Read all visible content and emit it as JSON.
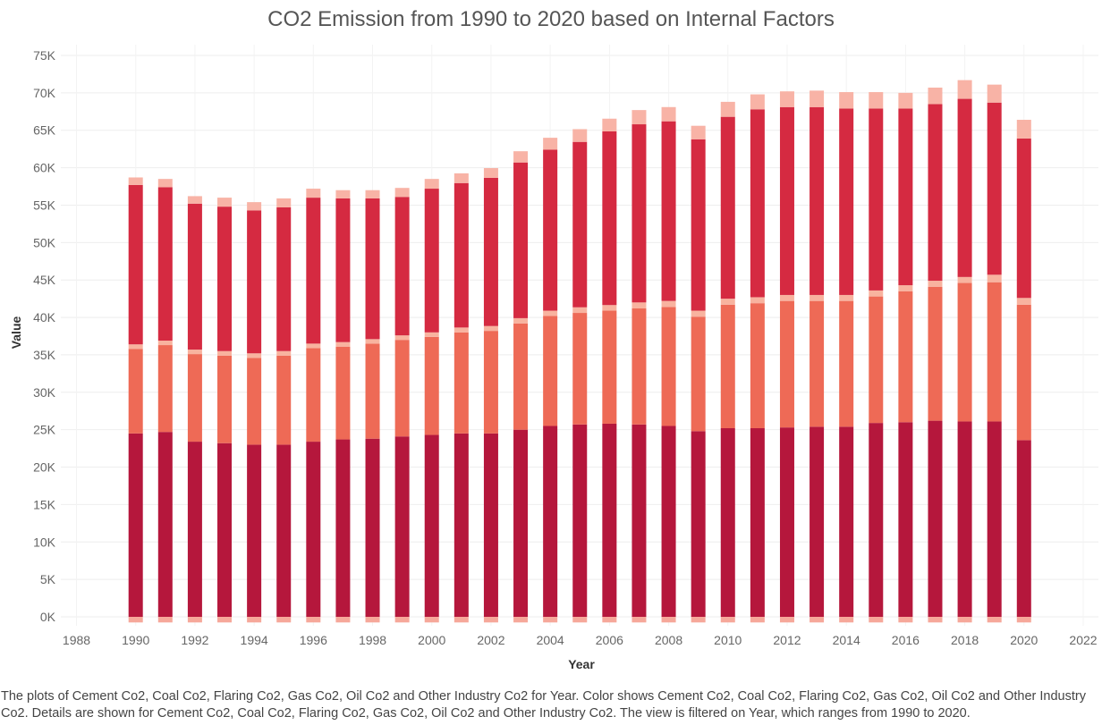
{
  "chart_data": {
    "type": "bar",
    "stacked": true,
    "title": "CO2 Emission from 1990 to 2020 based on Internal Factors",
    "xlabel": "Year",
    "ylabel": "Value",
    "ylim": [
      0,
      75000
    ],
    "xlim": [
      1988,
      2022
    ],
    "y_ticks": [
      "0K",
      "5K",
      "10K",
      "15K",
      "20K",
      "25K",
      "30K",
      "35K",
      "40K",
      "45K",
      "50K",
      "55K",
      "60K",
      "65K",
      "70K",
      "75K"
    ],
    "x_ticks": [
      "1988",
      "1990",
      "1992",
      "1994",
      "1996",
      "1998",
      "2000",
      "2002",
      "2004",
      "2006",
      "2008",
      "2010",
      "2012",
      "2014",
      "2016",
      "2018",
      "2020",
      "2022"
    ],
    "grid": true,
    "legend": "none",
    "categories": [
      "1990",
      "1991",
      "1992",
      "1993",
      "1994",
      "1995",
      "1996",
      "1997",
      "1998",
      "1999",
      "2000",
      "2001",
      "2002",
      "2003",
      "2004",
      "2005",
      "2006",
      "2007",
      "2008",
      "2009",
      "2010",
      "2011",
      "2012",
      "2013",
      "2014",
      "2015",
      "2016",
      "2017",
      "2018",
      "2019",
      "2020"
    ],
    "series": [
      {
        "color": "#f6a89a",
        "values": [
          -750,
          -750,
          -750,
          -750,
          -750,
          -750,
          -750,
          -750,
          -750,
          -750,
          -750,
          -750,
          -750,
          -750,
          -750,
          -750,
          -750,
          -750,
          -750,
          -750,
          -750,
          -750,
          -750,
          -750,
          -750,
          -750,
          -750,
          -750,
          -750,
          -750,
          -750
        ]
      },
      {
        "color": "#b5173c",
        "values": [
          24500,
          24700,
          23400,
          23200,
          23000,
          23000,
          23400,
          23700,
          23800,
          24100,
          24300,
          24500,
          24500,
          25000,
          25500,
          25700,
          25800,
          25700,
          25500,
          24800,
          25200,
          25200,
          25300,
          25400,
          25400,
          25900,
          26000,
          26200,
          26100,
          26100,
          23600
        ]
      },
      {
        "color": "#ee6a56",
        "values": [
          11300,
          11600,
          11700,
          11700,
          11600,
          11900,
          12500,
          12400,
          12700,
          12900,
          13100,
          13500,
          13700,
          14200,
          14700,
          14900,
          15100,
          15500,
          15900,
          15300,
          16500,
          16700,
          16900,
          16800,
          16800,
          16900,
          17500,
          17900,
          18500,
          18600,
          18100
        ]
      },
      {
        "color": "#f8b39f",
        "values": [
          600,
          600,
          600,
          600,
          600,
          600,
          600,
          600,
          600,
          600,
          600,
          650,
          650,
          700,
          700,
          750,
          750,
          800,
          800,
          800,
          800,
          800,
          800,
          800,
          800,
          800,
          800,
          800,
          800,
          1000,
          900
        ]
      },
      {
        "color": "#d52a41",
        "values": [
          21300,
          20500,
          19500,
          19300,
          19100,
          19200,
          19500,
          19200,
          18800,
          18500,
          19200,
          19300,
          19800,
          20800,
          21500,
          22100,
          23200,
          23800,
          24000,
          22900,
          24300,
          25100,
          25100,
          25100,
          24900,
          24300,
          23600,
          23600,
          23800,
          23000,
          21300
        ]
      },
      {
        "color": "#f8b3a6",
        "values": [
          1000,
          1100,
          1000,
          1200,
          1100,
          1200,
          1200,
          1100,
          1100,
          1200,
          1300,
          1300,
          1300,
          1500,
          1600,
          1700,
          1700,
          1900,
          1900,
          1800,
          2000,
          2000,
          2100,
          2200,
          2200,
          2200,
          2100,
          2200,
          2500,
          2400,
          2500
        ]
      }
    ]
  },
  "caption": "The plots of Cement Co2, Coal Co2, Flaring Co2, Gas Co2, Oil Co2 and Other Industry Co2 for Year.  Color shows Cement Co2, Coal Co2, Flaring Co2, Gas Co2, Oil Co2 and Other Industry Co2.  Details are shown for Cement Co2, Coal Co2, Flaring Co2, Gas Co2, Oil Co2 and Other Industry Co2. The view is filtered on Year, which ranges from 1990 to 2020."
}
